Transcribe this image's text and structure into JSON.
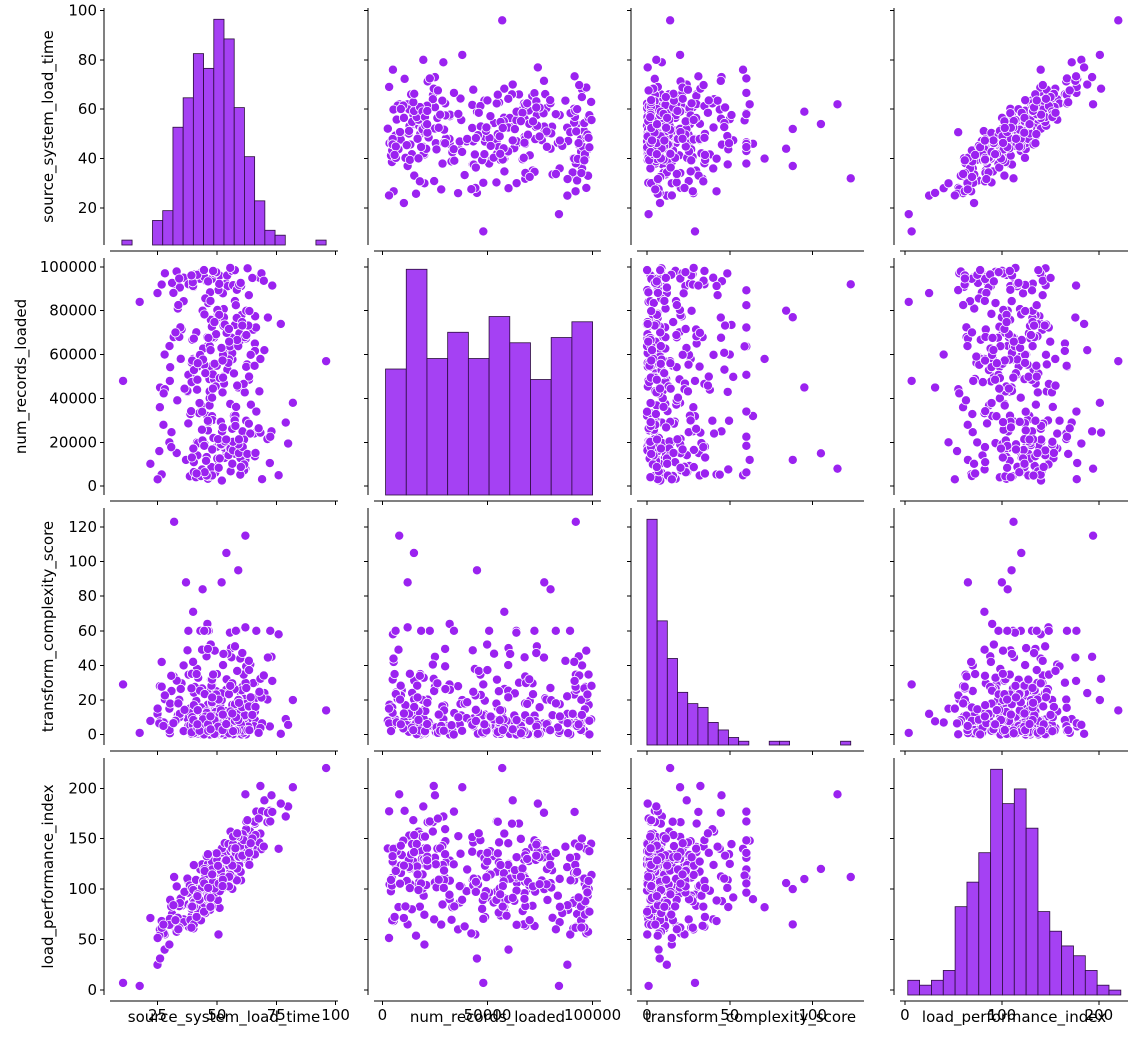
{
  "chart_data": {
    "type": "pairplot",
    "variables": [
      "source_system_load_time",
      "num_records_loaded",
      "transform_complexity_score",
      "load_performance_index"
    ],
    "color": "#9b22f0",
    "hist_color": "#a541f3",
    "axes": [
      {
        "name": "source_system_load_time",
        "range": [
          5,
          101
        ],
        "ticks": [
          25,
          50,
          75,
          100
        ],
        "row_ticks": [
          20,
          40,
          60,
          80,
          100
        ]
      },
      {
        "name": "num_records_loaded",
        "range": [
          -4000,
          104000
        ],
        "ticks": [
          0,
          50000,
          100000
        ],
        "row_ticks": [
          0,
          20000,
          40000,
          60000,
          80000,
          100000
        ]
      },
      {
        "name": "transform_complexity_score",
        "range": [
          -6,
          131
        ],
        "ticks": [
          0,
          50,
          100
        ],
        "row_ticks": [
          0,
          20,
          40,
          60,
          80,
          100,
          120
        ]
      },
      {
        "name": "load_performance_index",
        "range": [
          -5,
          230
        ],
        "ticks": [
          0,
          100,
          200
        ],
        "row_ticks": [
          0,
          50,
          100,
          150,
          200
        ]
      }
    ],
    "histograms": [
      {
        "variable": "source_system_load_time",
        "bin_start": 10,
        "bin_width": 4.3,
        "counts": [
          1,
          0,
          0,
          5,
          7,
          24,
          30,
          39,
          36,
          46,
          42,
          28,
          18,
          9,
          3,
          2,
          0,
          0,
          0,
          1
        ]
      },
      {
        "variable": "num_records_loaded",
        "bin_start": 1500,
        "bin_width": 9850,
        "counts": [
          24,
          43,
          26,
          31,
          26,
          34,
          29,
          22,
          30,
          33
        ]
      },
      {
        "variable": "transform_complexity_score",
        "bin_start": 0,
        "bin_width": 6.15,
        "counts": [
          60,
          33,
          23,
          14,
          11,
          10,
          6,
          4,
          2,
          1,
          0,
          0,
          1,
          1,
          0,
          0,
          0,
          0,
          0,
          1
        ]
      },
      {
        "variable": "load_performance_index",
        "bin_start": 3,
        "bin_width": 12.2,
        "counts": [
          3,
          2,
          3,
          5,
          18,
          23,
          29,
          46,
          39,
          42,
          34,
          17,
          13,
          10,
          8,
          5,
          2,
          1
        ]
      }
    ],
    "samples": {
      "columns": [
        "source_system_load_time",
        "num_records_loaded",
        "transform_complexity_score",
        "load_performance_index"
      ],
      "rows": [
        [
          10.5,
          48000,
          29,
          7
        ],
        [
          17.5,
          84000,
          1,
          4
        ],
        [
          96,
          57000,
          14,
          220
        ],
        [
          32,
          92000,
          123,
          112
        ],
        [
          62,
          8000,
          115,
          194
        ],
        [
          59,
          45000,
          95,
          110
        ],
        [
          54,
          15000,
          105,
          120
        ],
        [
          52,
          77000,
          88,
          100
        ],
        [
          37,
          12000,
          88,
          65
        ],
        [
          44,
          80000,
          84,
          106
        ],
        [
          76,
          5000,
          58,
          140
        ],
        [
          82,
          38000,
          20,
          201
        ],
        [
          70,
          62000,
          24,
          188
        ],
        [
          73,
          25000,
          45,
          193
        ],
        [
          40,
          58000,
          71,
          82
        ],
        [
          46,
          32000,
          64,
          90
        ],
        [
          56,
          60000,
          50,
          125
        ],
        [
          79,
          29000,
          9,
          172
        ],
        [
          66,
          65000,
          30,
          165
        ],
        [
          50,
          18000,
          35,
          100
        ],
        [
          26,
          36000,
          28,
          60
        ],
        [
          28,
          60000,
          7,
          40
        ],
        [
          30,
          20000,
          15,
          45
        ],
        [
          25,
          88000,
          12,
          25
        ],
        [
          36,
          95000,
          40,
          70
        ],
        [
          68,
          95000,
          4,
          142
        ],
        [
          62,
          12000,
          62,
          148
        ]
      ]
    }
  }
}
